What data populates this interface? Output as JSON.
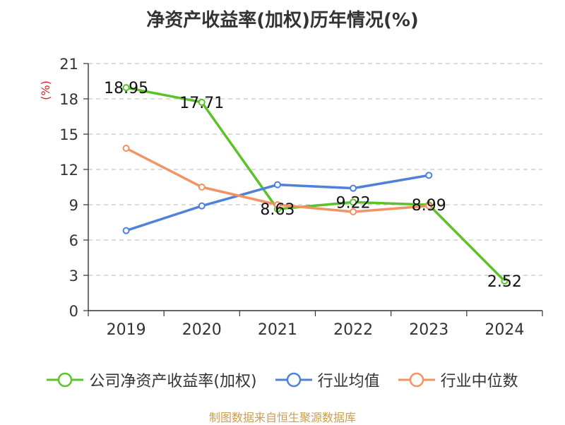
{
  "title": "净资产收益率(加权)历年情况(%)",
  "source": "制图数据来自恒生聚源数据库",
  "chart_data": {
    "type": "line",
    "title": "净资产收益率(加权)历年情况(%)",
    "ylabel": "(%)",
    "xlabel": "",
    "categories": [
      "2019",
      "2020",
      "2021",
      "2022",
      "2023",
      "2024"
    ],
    "ylim": [
      0,
      21
    ],
    "yticks": [
      0,
      3,
      6,
      9,
      12,
      15,
      18,
      21
    ],
    "grid": true,
    "legend_position": "bottom",
    "series": [
      {
        "name": "公司净资产收益率(加权)",
        "color": "#5cc22a",
        "values": [
          18.95,
          17.71,
          8.63,
          9.22,
          8.99,
          2.52
        ],
        "labels": true
      },
      {
        "name": "行业均值",
        "color": "#4f81d8",
        "values": [
          6.8,
          8.9,
          10.7,
          10.4,
          11.5,
          null
        ],
        "labels": false
      },
      {
        "name": "行业中位数",
        "color": "#f39262",
        "values": [
          13.8,
          10.5,
          9.0,
          8.4,
          8.9,
          null
        ],
        "labels": false
      }
    ]
  }
}
